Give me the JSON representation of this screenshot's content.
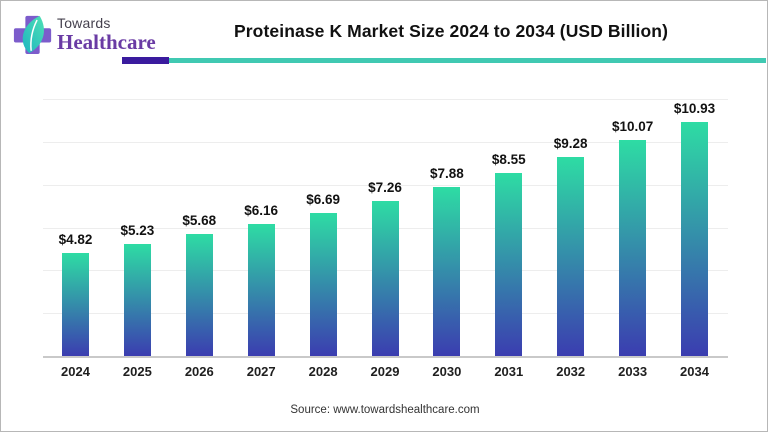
{
  "header": {
    "logo": {
      "line1": "Towards",
      "line2": "Healthcare"
    },
    "title": "Proteinase K Market Size 2024 to 2034 (USD Billion)"
  },
  "chart_data": {
    "type": "bar",
    "title": "Proteinase K Market Size 2024 to 2034 (USD Billion)",
    "categories": [
      "2024",
      "2025",
      "2026",
      "2027",
      "2028",
      "2029",
      "2030",
      "2031",
      "2032",
      "2033",
      "2034"
    ],
    "values": [
      4.82,
      5.23,
      5.68,
      6.16,
      6.69,
      7.26,
      7.88,
      8.55,
      9.28,
      10.07,
      10.93
    ],
    "value_prefix": "$",
    "xlabel": "",
    "ylabel": "",
    "ylim": [
      0,
      12
    ],
    "grid_step": 2,
    "grid": true,
    "legend": false,
    "bar_gradient_top": "#2edca4",
    "bar_gradient_bottom": "#3b3db0"
  },
  "footer": {
    "source": "Source: www.towardshealthcare.com"
  },
  "colors": {
    "accent_purple": "#3a1b9e",
    "accent_teal": "#40c9b2",
    "logo_purple": "#7c5ccb",
    "logo_leaf_teal": "#2fc9b8",
    "gridline": "#ededed",
    "axis": "#c9c9c9"
  }
}
